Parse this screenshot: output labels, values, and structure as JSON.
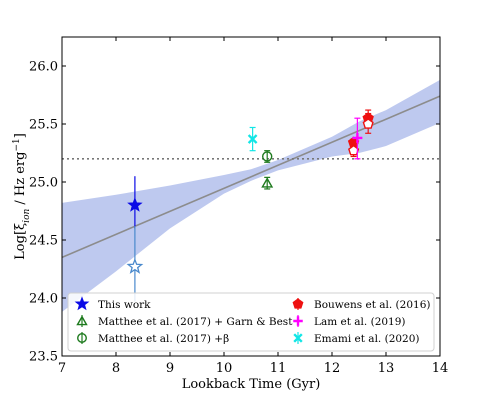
{
  "chart_data": {
    "type": "scatter",
    "xlabel": "Lookback Time (Gyr)",
    "ylabel": "Log[ξ_ion / Hz erg⁻¹]",
    "ylabel_parts": {
      "pre": "Log[ξ",
      "sub": "ion",
      "mid": " / Hz erg",
      "sup": "−1",
      "post": "]"
    },
    "xlim": [
      7,
      14
    ],
    "ylim": [
      23.5,
      26.25
    ],
    "x_ticks": [
      7,
      8,
      9,
      10,
      11,
      12,
      13,
      14
    ],
    "y_ticks": [
      23.5,
      24.0,
      24.5,
      25.0,
      25.5,
      26.0
    ],
    "x_tick_labels": [
      "7",
      "8",
      "9",
      "10",
      "11",
      "12",
      "13",
      "14"
    ],
    "y_tick_labels": [
      "23.5",
      "24.0",
      "24.5",
      "25.0",
      "25.5",
      "26.0"
    ],
    "grid": false,
    "legend_placement": "bottom",
    "reference_line": {
      "y": 25.2,
      "style": "dotted",
      "color": "#777777"
    },
    "fit": {
      "x": [
        7,
        14
      ],
      "y": [
        24.35,
        25.74
      ],
      "band_x": [
        7.0,
        8.0,
        9.0,
        10.0,
        10.5,
        11.0,
        11.5,
        12.0,
        12.5,
        13.0,
        14.0
      ],
      "band_lower": [
        23.88,
        24.23,
        24.6,
        24.9,
        25.01,
        25.1,
        25.16,
        25.22,
        25.25,
        25.31,
        25.51
      ],
      "band_upper": [
        24.82,
        24.89,
        24.97,
        25.06,
        25.11,
        25.19,
        25.29,
        25.39,
        25.52,
        25.62,
        25.88
      ],
      "line_color": "#8c8c8c",
      "band_color": "#a8b7ea"
    },
    "series": [
      {
        "name": "This work",
        "marker": "star-filled",
        "color": "#0a0ae6",
        "points": [
          {
            "x": 8.35,
            "y": 24.8,
            "yerr_low": 0.2,
            "yerr_high": 0.25
          }
        ]
      },
      {
        "name": "",
        "marker": "star-open",
        "color": "#4a89cc",
        "points": [
          {
            "x": 8.35,
            "y": 24.27,
            "yerr_low": 0.3,
            "yerr_high": 0.35
          }
        ]
      },
      {
        "name": "Matthee et al. (2017) + Garn & Best",
        "marker": "triangle-open",
        "color": "#1e7a1e",
        "points": [
          {
            "x": 10.8,
            "y": 24.99,
            "yerr_low": 0.05,
            "yerr_high": 0.05
          }
        ]
      },
      {
        "name": "Matthee et al. (2017) +β",
        "marker": "circle-open",
        "color": "#1e7a1e",
        "points": [
          {
            "x": 10.8,
            "y": 25.22,
            "yerr_low": 0.05,
            "yerr_high": 0.05
          }
        ]
      },
      {
        "name": "Bouwens et al. (2016)",
        "marker": "pentagon-filled",
        "color": "#ee1111",
        "points": [
          {
            "x": 12.4,
            "y": 25.34,
            "yerr_low": 0.03,
            "yerr_high": 0.03
          },
          {
            "x": 12.67,
            "y": 25.55,
            "yerr_low": 0.04,
            "yerr_high": 0.04
          }
        ]
      },
      {
        "name": "",
        "marker": "pentagon-open",
        "color": "#ee1111",
        "points": [
          {
            "x": 12.4,
            "y": 25.27,
            "yerr_low": 0.05,
            "yerr_high": 0.05
          },
          {
            "x": 12.67,
            "y": 25.5,
            "yerr_low": 0.08,
            "yerr_high": 0.12
          }
        ]
      },
      {
        "name": "Lam et al. (2019)",
        "marker": "plus",
        "color": "#ff00ff",
        "points": [
          {
            "x": 12.47,
            "y": 25.38,
            "yerr_low": 0.18,
            "yerr_high": 0.17
          }
        ]
      },
      {
        "name": "Emami et al. (2020)",
        "marker": "x",
        "color": "#12e6e6",
        "points": [
          {
            "x": 10.53,
            "y": 25.37,
            "yerr_low": 0.1,
            "yerr_high": 0.1
          }
        ]
      }
    ],
    "legend": [
      {
        "label": "This work",
        "marker": "star-filled",
        "color": "#0a0ae6",
        "col": 0,
        "row": 0
      },
      {
        "label": "Matthee et al. (2017) + Garn & Best",
        "marker": "triangle-open",
        "color": "#1e7a1e",
        "col": 0,
        "row": 1
      },
      {
        "label": "Matthee et al. (2017) +β",
        "marker": "circle-open",
        "color": "#1e7a1e",
        "col": 0,
        "row": 2
      },
      {
        "label": "Bouwens et al. (2016)",
        "marker": "pentagon-filled",
        "color": "#ee1111",
        "col": 1,
        "row": 0
      },
      {
        "label": "Lam et al. (2019)",
        "marker": "plus",
        "color": "#ff00ff",
        "col": 1,
        "row": 1
      },
      {
        "label": "Emami et al. (2020)",
        "marker": "x",
        "color": "#12e6e6",
        "col": 1,
        "row": 2
      }
    ]
  }
}
